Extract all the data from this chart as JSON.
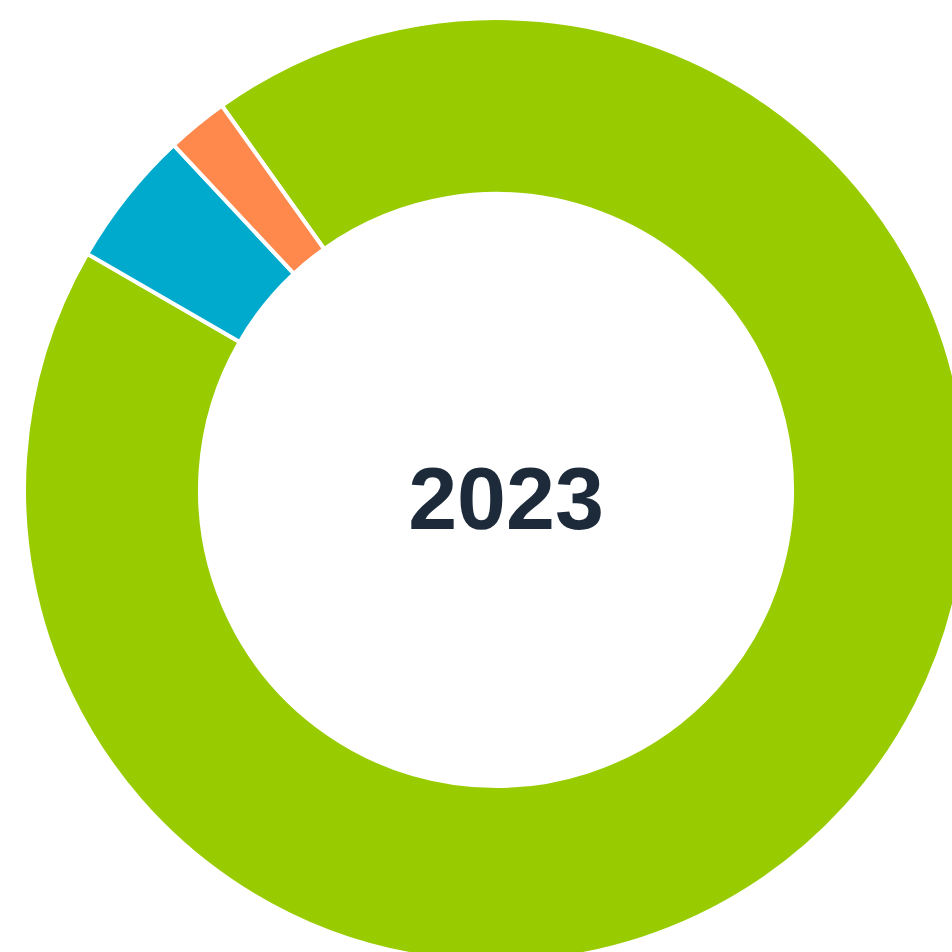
{
  "chart_data": {
    "type": "donut",
    "title": "2023",
    "categories": [
      null,
      null,
      null
    ],
    "values": [
      93.2,
      4.7,
      2.1
    ],
    "colors": [
      "#99cc00",
      "#00aacc",
      "#ff884d"
    ]
  }
}
